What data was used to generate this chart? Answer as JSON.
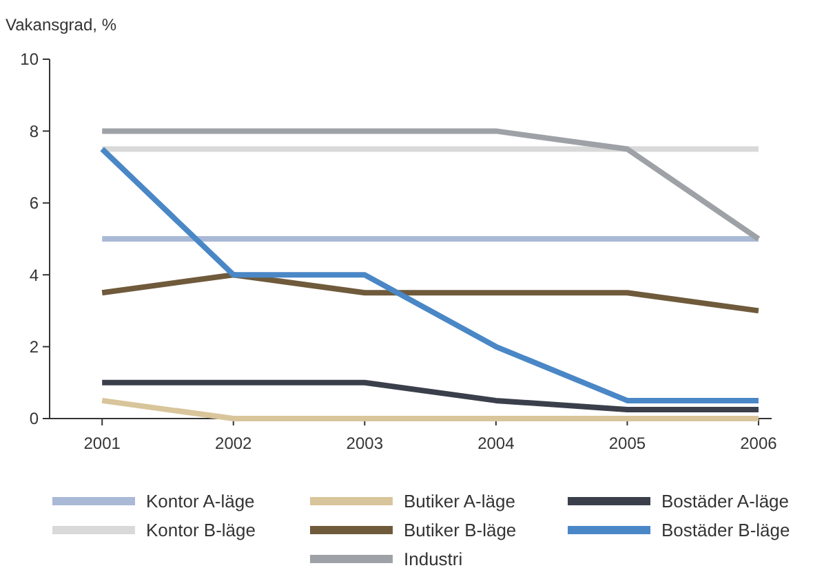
{
  "chart_data": {
    "type": "line",
    "ylabel": "Vakansgrad, %",
    "x": [
      2001,
      2002,
      2003,
      2004,
      2005,
      2006
    ],
    "xlim": [
      2000.6,
      2006.1
    ],
    "xticks": [
      2001,
      2002,
      2003,
      2004,
      2005,
      2006
    ],
    "ylim": [
      0,
      10
    ],
    "yticks": [
      0,
      2,
      4,
      6,
      8,
      10
    ],
    "grid": false,
    "legend": "bottom",
    "line_style": "solid",
    "series": [
      {
        "name": "Kontor A-läge",
        "color": "#a9b9d6",
        "values": [
          5,
          5,
          5,
          5,
          5,
          5
        ]
      },
      {
        "name": "Kontor B-läge",
        "color": "#d9d9d9",
        "values": [
          7.5,
          7.5,
          7.5,
          7.5,
          7.5,
          7.5
        ]
      },
      {
        "name": "Butiker A-läge",
        "color": "#d9c59b",
        "values": [
          0.5,
          0,
          0,
          0,
          0,
          0
        ]
      },
      {
        "name": "Butiker B-läge",
        "color": "#6f5a3b",
        "values": [
          3.5,
          4,
          3.5,
          3.5,
          3.5,
          3
        ]
      },
      {
        "name": "Industri",
        "color": "#9ea2a7",
        "values": [
          8,
          8,
          8,
          8,
          7.5,
          5
        ]
      },
      {
        "name": "Bostäder A-läge",
        "color": "#3a3f4b",
        "values": [
          1,
          1,
          1,
          0.5,
          0.25,
          0.25
        ]
      },
      {
        "name": "Bostäder B-läge",
        "color": "#4a87c6",
        "values": [
          7.5,
          4,
          4,
          2,
          0.5,
          0.5
        ]
      }
    ]
  }
}
